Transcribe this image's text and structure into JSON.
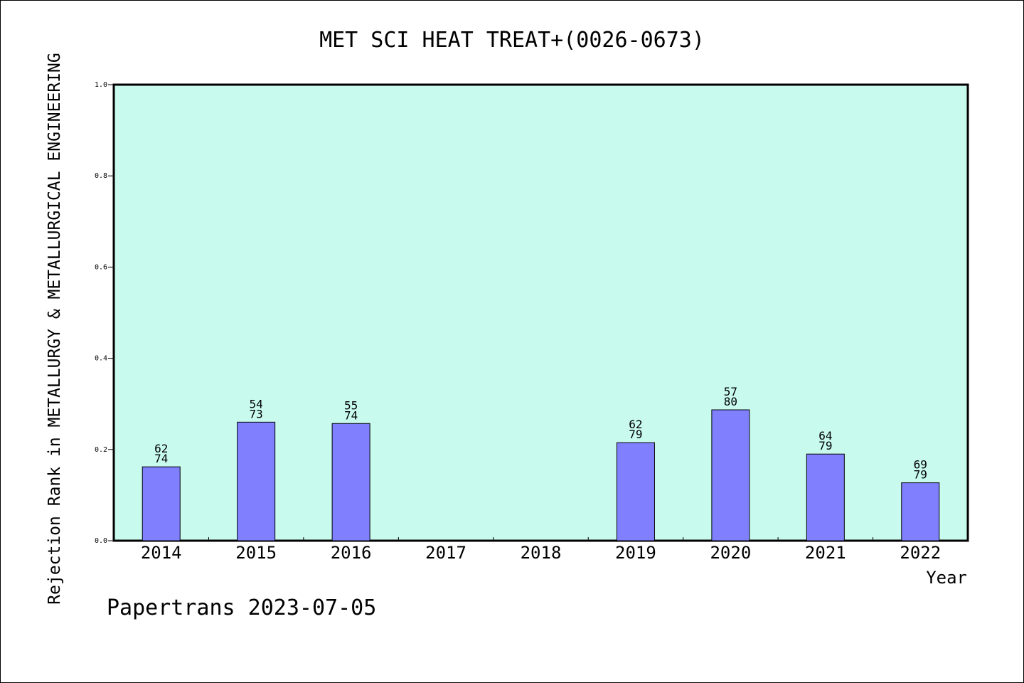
{
  "chart_data": {
    "type": "bar",
    "title": "MET SCI HEAT TREAT+(0026-0673)",
    "xlabel": "Year",
    "ylabel": "Rejection Rank in METALLURGY & METALLURGICAL ENGINEERING",
    "ylim": [
      0,
      1.0
    ],
    "yticks": [
      "0.0",
      "0.2",
      "0.4",
      "0.6",
      "0.8",
      "1.0"
    ],
    "grid": false,
    "categories": [
      "2014",
      "2015",
      "2016",
      "2017",
      "2018",
      "2019",
      "2020",
      "2021",
      "2022"
    ],
    "values": [
      0.162,
      0.26,
      0.257,
      null,
      null,
      0.215,
      0.287,
      0.19,
      0.127
    ],
    "label_top": [
      "62",
      "54",
      "55",
      "",
      "",
      "62",
      "57",
      "64",
      "69"
    ],
    "label_bottom": [
      "74",
      "73",
      "74",
      "",
      "",
      "79",
      "80",
      "79",
      "79"
    ],
    "colors": {
      "plot_bg": "#c8fbee",
      "bar": "#8080ff",
      "bar_edge": "#000000"
    }
  },
  "footer": "Papertrans 2023-07-05"
}
